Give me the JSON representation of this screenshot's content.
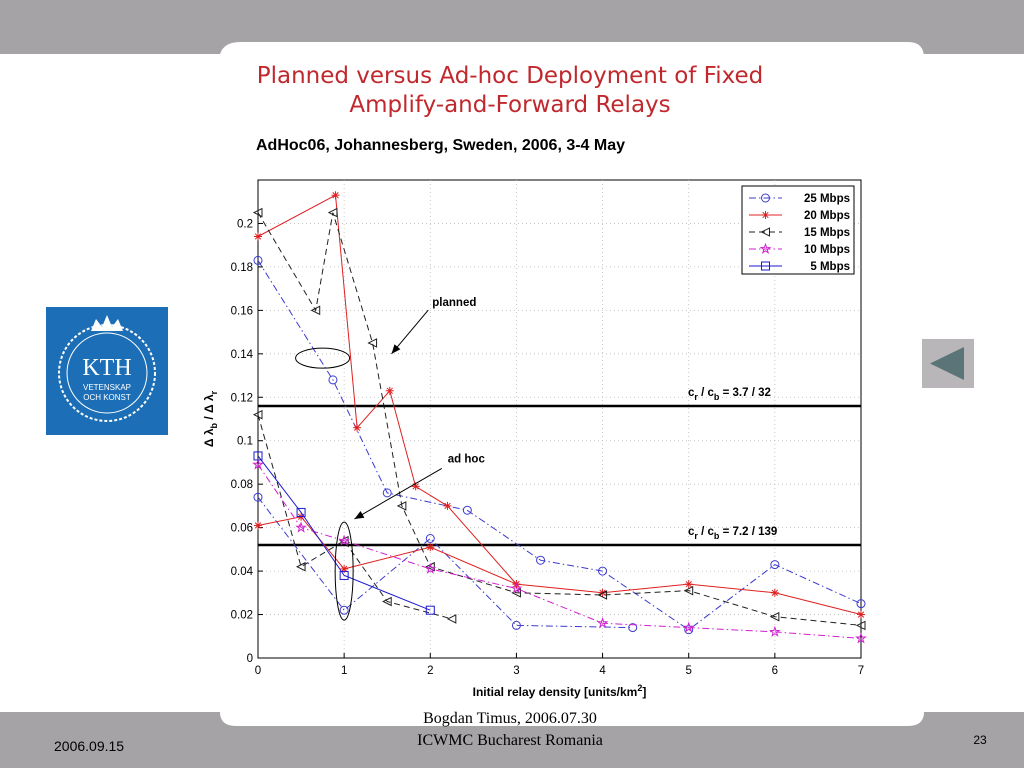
{
  "slide": {
    "title_line1": "Planned versus Ad-hoc Deployment of Fixed",
    "title_line2": "Amplify-and-Forward Relays",
    "subtitle": "AdHoc06, Johannesberg, Sweden, 2006, 3-4 May",
    "logo_text": "KTH",
    "logo_sub1": "VETENSKAP",
    "logo_sub2": "OCH KONST",
    "footer_date": "2006.09.15",
    "footer_author": "Bogdan Timus,    2006.07.30",
    "footer_venue": "ICWMC Bucharest Romania",
    "page_number": "23",
    "back_icon": "left-triangle-icon"
  },
  "colors": {
    "background": "#a6a3a6",
    "title": "#c0282d",
    "logo_bg": "#1c6fb6",
    "series_25": "#3b3bd0",
    "series_20": "#e02020",
    "series_15": "#202020",
    "series_10": "#d020d0",
    "series_5": "#1a1ad0"
  },
  "chart_data": {
    "type": "line",
    "xlabel": "Initial relay density [units/km",
    "xlabel_sup": "2",
    "xlabel_end": "]",
    "ylabel": "Δ λ_b / Δ λ_r",
    "xlim": [
      0,
      7
    ],
    "ylim": [
      0,
      0.22
    ],
    "xticks": [
      "0",
      "1",
      "2",
      "3",
      "4",
      "5",
      "6",
      "7"
    ],
    "yticks": [
      "0",
      "0.02",
      "0.04",
      "0.06",
      "0.08",
      "0.1",
      "0.12",
      "0.14",
      "0.16",
      "0.18",
      "0.2"
    ],
    "grid": true,
    "legend_position": "top-right",
    "series": [
      {
        "name": "25 Mbps",
        "marker": "circle",
        "dash": "dashdot",
        "color": "#3b3bd0",
        "points": [
          [
            0,
            0.183
          ],
          [
            0.87,
            0.128
          ],
          [
            1.5,
            0.076
          ],
          [
            2.43,
            0.068
          ],
          [
            3.28,
            0.045
          ],
          [
            4,
            0.04
          ],
          [
            5,
            0.013
          ],
          [
            6,
            0.043
          ],
          [
            7,
            0.025
          ]
        ]
      },
      {
        "name": "25 Mbps (ad hoc)",
        "marker": "circle",
        "dash": "dashdot",
        "color": "#3b3bd0",
        "points": [
          [
            0,
            0.074
          ],
          [
            1,
            0.022
          ],
          [
            2,
            0.055
          ],
          [
            3,
            0.015
          ],
          [
            4.35,
            0.014
          ]
        ]
      },
      {
        "name": "20 Mbps",
        "marker": "star",
        "dash": "solid",
        "color": "#e02020",
        "points": [
          [
            0,
            0.194
          ],
          [
            0.9,
            0.213
          ],
          [
            1.15,
            0.106
          ],
          [
            1.53,
            0.123
          ],
          [
            1.83,
            0.079
          ],
          [
            2.2,
            0.07
          ],
          [
            3,
            0.034
          ],
          [
            4,
            0.03
          ],
          [
            5,
            0.034
          ],
          [
            6,
            0.03
          ],
          [
            7,
            0.02
          ]
        ]
      },
      {
        "name": "20 Mbps (ad hoc)",
        "marker": "star",
        "dash": "solid",
        "color": "#e02020",
        "points": [
          [
            0,
            0.061
          ],
          [
            0.5,
            0.065
          ],
          [
            1,
            0.041
          ],
          [
            2,
            0.051
          ],
          [
            3,
            0.034
          ]
        ]
      },
      {
        "name": "15 Mbps",
        "marker": "triangle-left",
        "dash": "dashed",
        "color": "#202020",
        "points": [
          [
            0,
            0.205
          ],
          [
            0.67,
            0.16
          ],
          [
            0.87,
            0.205
          ],
          [
            1.33,
            0.145
          ],
          [
            1.67,
            0.07
          ],
          [
            2,
            0.042
          ],
          [
            3,
            0.03
          ],
          [
            4,
            0.029
          ],
          [
            5,
            0.031
          ],
          [
            6,
            0.019
          ],
          [
            7,
            0.015
          ]
        ]
      },
      {
        "name": "15 Mbps (ad hoc)",
        "marker": "triangle-left",
        "dash": "dashed",
        "color": "#202020",
        "points": [
          [
            0,
            0.112
          ],
          [
            0.5,
            0.042
          ],
          [
            1,
            0.054
          ],
          [
            1.5,
            0.026
          ],
          [
            2.25,
            0.018
          ]
        ]
      },
      {
        "name": "10 Mbps",
        "marker": "pentagram",
        "dash": "dashdot",
        "color": "#d020d0",
        "points": [
          [
            0,
            0.089
          ],
          [
            0.5,
            0.06
          ],
          [
            1,
            0.054
          ],
          [
            2,
            0.041
          ],
          [
            3,
            0.032
          ],
          [
            4,
            0.016
          ],
          [
            5,
            0.014
          ],
          [
            6,
            0.012
          ],
          [
            7,
            0.009
          ]
        ]
      },
      {
        "name": "5 Mbps",
        "marker": "square",
        "dash": "solid",
        "color": "#1a1ad0",
        "points": [
          [
            0,
            0.093
          ],
          [
            0.5,
            0.067
          ],
          [
            1,
            0.038
          ],
          [
            2,
            0.022
          ]
        ]
      }
    ],
    "legend": [
      "25 Mbps",
      "20 Mbps",
      "15 Mbps",
      "10 Mbps",
      "5 Mbps"
    ],
    "hlines": [
      {
        "y": 0.116,
        "label_pre": "c",
        "label_sub1": "r",
        "label_mid": " / c",
        "label_sub2": "b",
        "label_post": " = 3.7 / 32"
      },
      {
        "y": 0.052,
        "label_pre": "c",
        "label_sub1": "r",
        "label_mid": " / c",
        "label_sub2": "b",
        "label_post": " = 7.2 / 139"
      }
    ],
    "annotations": [
      {
        "text": "planned",
        "at": [
          2.0,
          0.162
        ],
        "arrow_to": [
          1.55,
          0.14
        ],
        "ellipse_center": [
          0.75,
          0.138
        ]
      },
      {
        "text": "ad hoc",
        "at": [
          2.18,
          0.09
        ],
        "arrow_to": [
          1.12,
          0.064
        ],
        "ellipse_center": [
          1.0,
          0.04
        ]
      }
    ]
  }
}
